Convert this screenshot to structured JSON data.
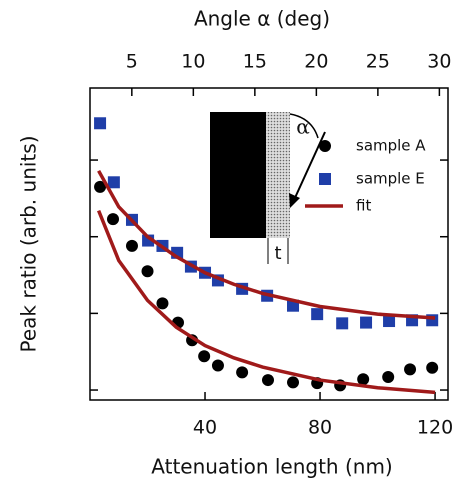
{
  "chart_data": {
    "type": "scatter",
    "xlabel": "Attenuation length (nm)",
    "x2label": "Angle α (deg)",
    "ylabel": "Peak ratio (arb. units)",
    "xlim": [
      0,
      124.5
    ],
    "xticks": [
      40,
      80,
      120
    ],
    "x2lim": [
      1.6,
      30.7
    ],
    "x2ticks": [
      5,
      10,
      15,
      20,
      25,
      30
    ],
    "ylim": [
      0.87,
      4.94
    ],
    "yticks": [
      1,
      2,
      3,
      4
    ],
    "annotations": [
      "α",
      "t"
    ],
    "series": [
      {
        "name": "sample A",
        "color": "#000000",
        "marker": "circle",
        "x": [
          3.5,
          8,
          14.6,
          20,
          25.2,
          30.6,
          35.5,
          39.7,
          44.5,
          52.9,
          61.9,
          70.6,
          79,
          87,
          95,
          103.7,
          111.3,
          119
        ],
        "values": [
          3.65,
          3.23,
          2.88,
          2.55,
          2.13,
          1.88,
          1.65,
          1.44,
          1.32,
          1.23,
          1.13,
          1.1,
          1.09,
          1.06,
          1.14,
          1.17,
          1.27,
          1.29
        ]
      },
      {
        "name": "sample E",
        "color": "#1f3ea8",
        "marker": "square",
        "x": [
          3.5,
          8.3,
          14.6,
          20.2,
          25.2,
          30.3,
          35.1,
          40,
          44.5,
          52.9,
          61.6,
          70.6,
          79,
          87.7,
          96,
          104,
          112,
          119
        ],
        "values": [
          4.48,
          3.71,
          3.22,
          2.95,
          2.88,
          2.79,
          2.61,
          2.53,
          2.43,
          2.32,
          2.23,
          2.1,
          1.99,
          1.87,
          1.88,
          1.9,
          1.91,
          1.91
        ]
      },
      {
        "name": "fit",
        "color": "#a01a1a",
        "marker": "line",
        "x": [
          3,
          10,
          20,
          30,
          40,
          50,
          60,
          80,
          100,
          120,
          null,
          3,
          10,
          20,
          30,
          40,
          50,
          60,
          80,
          100,
          120
        ],
        "values": [
          3.86,
          3.39,
          3.0,
          2.74,
          2.53,
          2.38,
          2.26,
          2.09,
          1.99,
          1.94,
          null,
          3.34,
          2.69,
          2.17,
          1.82,
          1.58,
          1.42,
          1.3,
          1.13,
          1.03,
          0.97
        ]
      }
    ]
  }
}
